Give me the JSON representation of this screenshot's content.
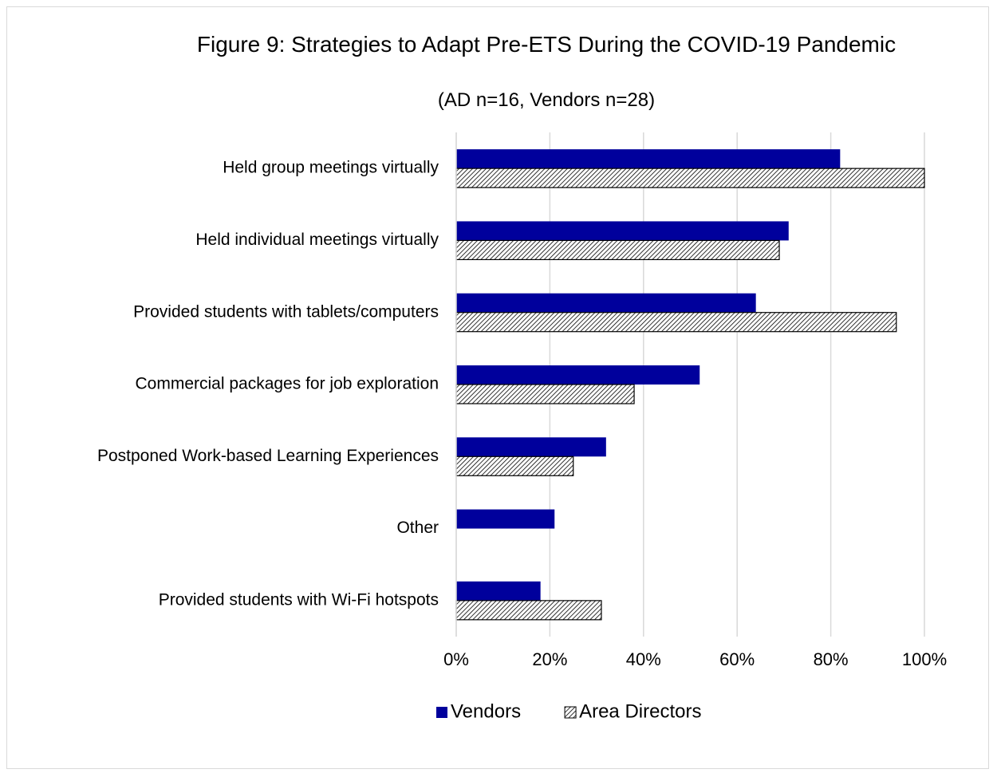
{
  "chart_data": {
    "type": "barh",
    "title": "Figure 9: Strategies to Adapt Pre-ETS During the COVID-19 Pandemic",
    "subtitle": "(AD n=16, Vendors n=28)",
    "categories": [
      "Held group meetings virtually",
      "Held individual meetings virtually",
      "Provided students with tablets/computers",
      "Commercial packages for job exploration",
      "Postponed Work-based Learning Experiences",
      "Other",
      "Provided students with Wi-Fi hotspots"
    ],
    "series": [
      {
        "name": "Vendors",
        "color": "#00009c",
        "values": [
          82,
          71,
          64,
          52,
          32,
          21,
          18
        ]
      },
      {
        "name": "Area Directors",
        "color": "#000000",
        "pattern": "hatch",
        "values": [
          100,
          69,
          94,
          38,
          25,
          null,
          31
        ]
      }
    ],
    "xlim": [
      0,
      100
    ],
    "xticks": [
      {
        "value": 0,
        "label": "0%"
      },
      {
        "value": 20,
        "label": "20%"
      },
      {
        "value": 40,
        "label": "40%"
      },
      {
        "value": 60,
        "label": "60%"
      },
      {
        "value": 80,
        "label": "80%"
      },
      {
        "value": 100,
        "label": "100%"
      }
    ],
    "grid": true,
    "legend": "bottom"
  }
}
